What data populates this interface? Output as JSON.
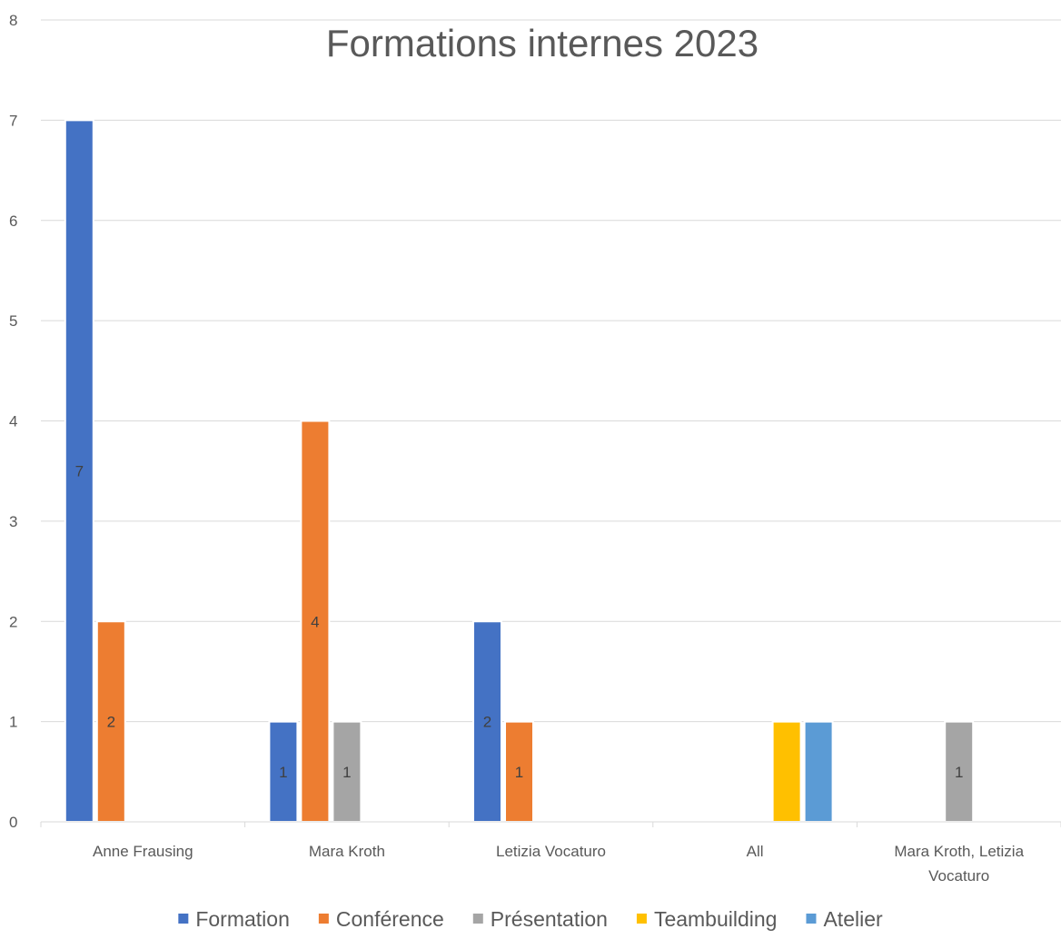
{
  "chart_data": {
    "type": "bar",
    "title": "Formations internes 2023",
    "categories": [
      [
        "Anne Frausing"
      ],
      [
        "Mara Kroth"
      ],
      [
        "Letizia Vocaturo"
      ],
      [
        "All"
      ],
      [
        "Mara Kroth, Letizia",
        "Vocaturo"
      ]
    ],
    "series": [
      {
        "name": "Formation",
        "color": "#4472C4",
        "values": [
          7,
          1,
          2,
          null,
          null
        ]
      },
      {
        "name": "Conférence",
        "color": "#ED7D31",
        "values": [
          2,
          4,
          1,
          null,
          null
        ]
      },
      {
        "name": "Présentation",
        "color": "#A5A5A5",
        "values": [
          null,
          1,
          null,
          null,
          1
        ]
      },
      {
        "name": "Teambuilding",
        "color": "#FFC000",
        "values": [
          null,
          null,
          null,
          1,
          null
        ]
      },
      {
        "name": "Atelier",
        "color": "#5B9BD5",
        "values": [
          null,
          null,
          null,
          1,
          null
        ]
      }
    ],
    "data_labels": [
      {
        "series": 0,
        "category": 0,
        "text": "7"
      },
      {
        "series": 1,
        "category": 0,
        "text": "2"
      },
      {
        "series": 0,
        "category": 1,
        "text": "1"
      },
      {
        "series": 1,
        "category": 1,
        "text": "4"
      },
      {
        "series": 2,
        "category": 1,
        "text": "1"
      },
      {
        "series": 0,
        "category": 2,
        "text": "2"
      },
      {
        "series": 1,
        "category": 2,
        "text": "1"
      },
      {
        "series": 2,
        "category": 4,
        "text": "1"
      }
    ],
    "ylim": [
      0,
      8
    ],
    "yticks": [
      "0",
      "1",
      "2",
      "3",
      "4",
      "5",
      "6",
      "7",
      "8"
    ],
    "grid": true,
    "legend": "bottom"
  }
}
